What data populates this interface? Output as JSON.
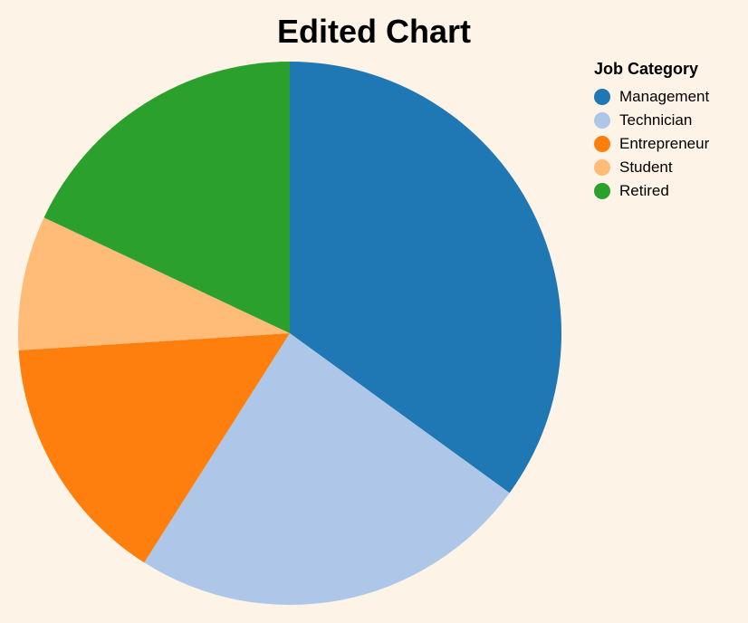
{
  "chart_data": {
    "type": "pie",
    "title": "Edited Chart",
    "legend_title": "Job Category",
    "legend_position": "top-right",
    "categories": [
      "Management",
      "Technician",
      "Entrepreneur",
      "Student",
      "Retired"
    ],
    "values": [
      35,
      24,
      15,
      8,
      18
    ],
    "colors": [
      "#1f77b4",
      "#aec7e8",
      "#ff7f0e",
      "#ffbb78",
      "#2ca02c"
    ],
    "start_angle_deg": 0,
    "direction": "clockwise"
  }
}
